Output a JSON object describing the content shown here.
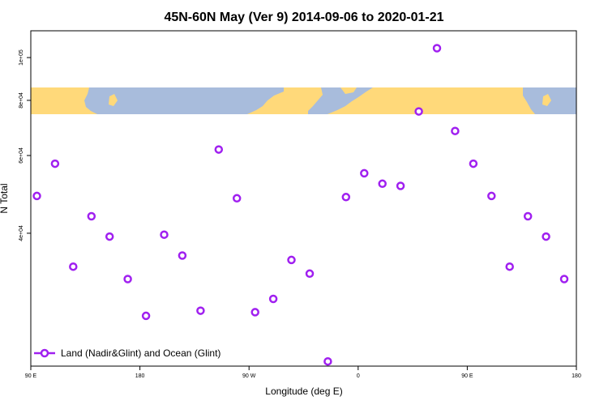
{
  "chart_data": {
    "type": "scatter",
    "title": "45N-60N May (Ver 9)   2014-09-06 to 2020-01-21",
    "xlabel": "Longitude (deg E)",
    "ylabel": "N Total",
    "x_tick_labels": [
      "90 E",
      "180",
      "90 W",
      "0",
      "90 E",
      "180"
    ],
    "y_tick_labels": [
      "4e+04",
      "6e+04",
      "8e+04",
      "1e+05"
    ],
    "y_scale": "log",
    "grid": false,
    "legend_position": "bottom-left",
    "marker_color": "#a020f0",
    "map_colors": {
      "land": "#ffd97a",
      "ocean": "#a8bcdc"
    },
    "series": [
      {
        "name": "Land (Nadir&Glint) and Ocean (Glint)",
        "x": [
          95,
          110,
          125,
          140,
          155,
          170,
          185,
          200,
          215,
          230,
          245,
          260,
          275,
          290,
          305,
          320,
          335,
          350,
          365,
          380,
          395,
          410,
          425,
          440,
          455,
          470,
          485,
          500,
          515,
          530
        ],
        "y": [
          48600,
          57500,
          33600,
          43700,
          39300,
          31500,
          26000,
          39700,
          35600,
          26700,
          61900,
          48000,
          26500,
          28400,
          34800,
          32400,
          20500,
          48300,
          54700,
          51800,
          51200,
          75500,
          105000,
          68200,
          57500,
          48600,
          33600,
          43700,
          39300,
          31500
        ]
      }
    ]
  }
}
